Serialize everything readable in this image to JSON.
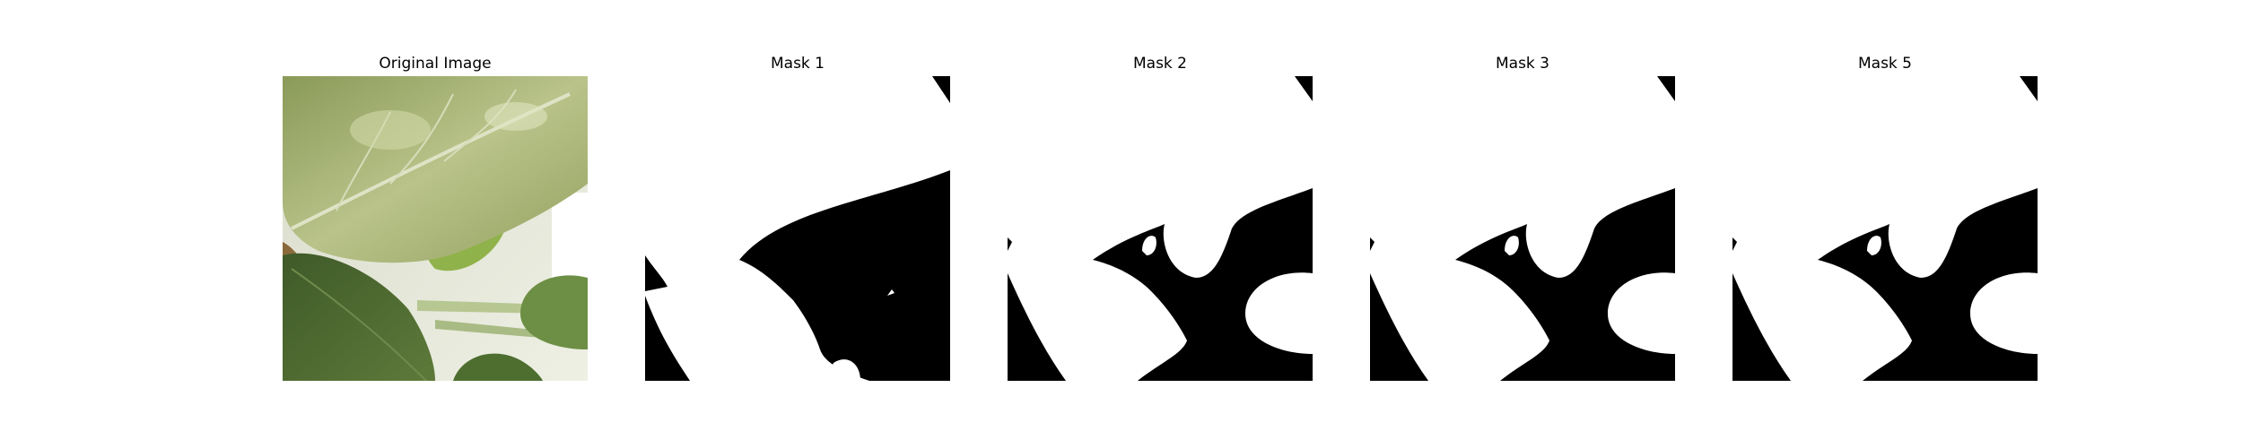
{
  "figure": {
    "panels": [
      {
        "title": "Original Image",
        "kind": "photo",
        "description": "Close-up photo of green leaves"
      },
      {
        "title": "Mask 1",
        "kind": "mask"
      },
      {
        "title": "Mask 2",
        "kind": "mask"
      },
      {
        "title": "Mask 3",
        "kind": "mask"
      },
      {
        "title": "Mask 5",
        "kind": "mask"
      }
    ],
    "colors": {
      "mask_foreground": "#ffffff",
      "mask_background": "#000000"
    }
  }
}
